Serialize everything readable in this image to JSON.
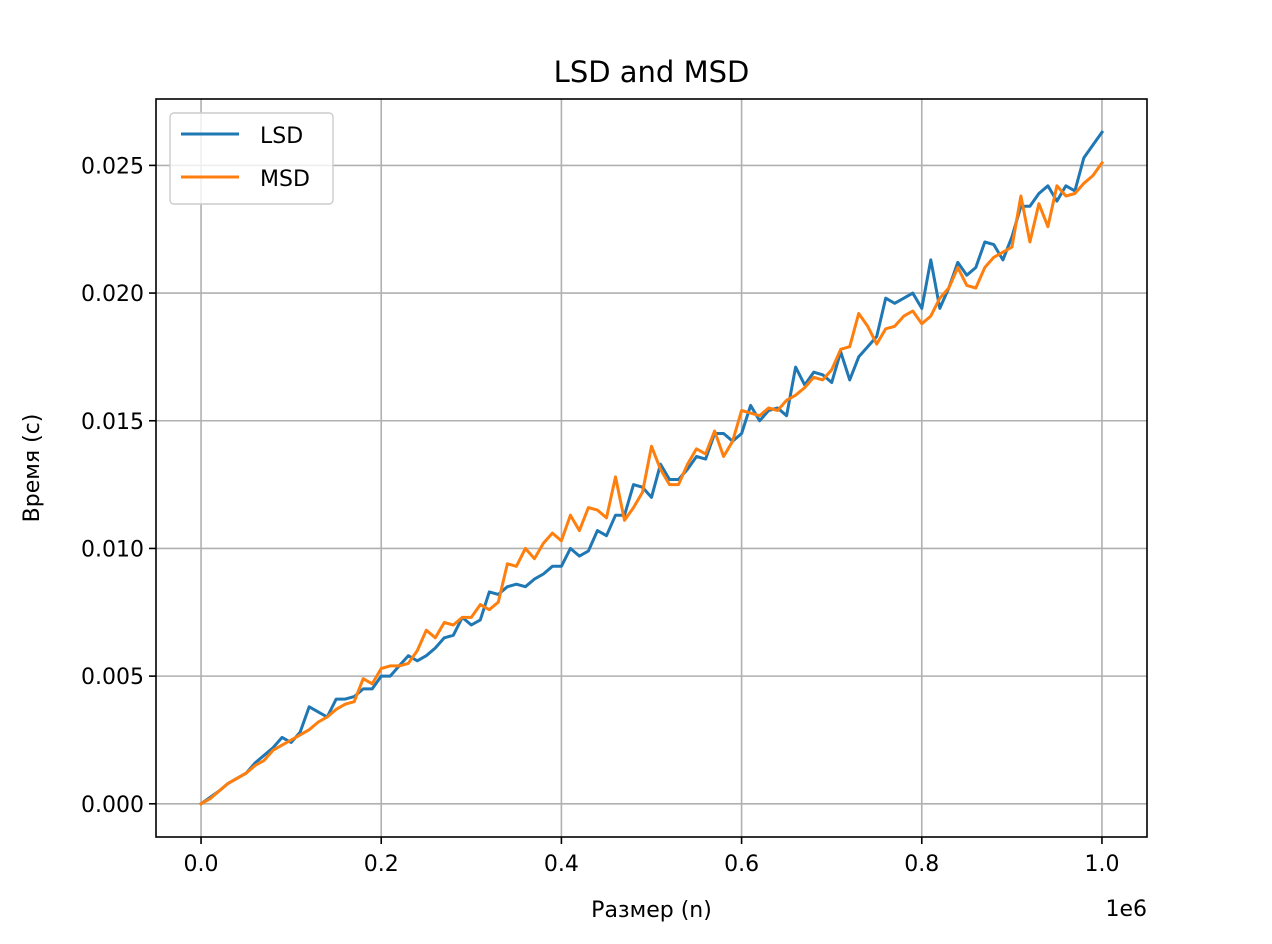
{
  "chart_data": {
    "type": "line",
    "title": "LSD and MSD",
    "xlabel": "Размер (n)",
    "ylabel": "Время (c)",
    "x_offset_label": "1e6",
    "xlim": [
      -50000,
      1050000
    ],
    "ylim": [
      -0.0013,
      0.0276
    ],
    "x_ticks": [
      0,
      200000,
      400000,
      600000,
      800000,
      1000000
    ],
    "x_tick_labels": [
      "0.0",
      "0.2",
      "0.4",
      "0.6",
      "0.8",
      "1.0"
    ],
    "y_ticks": [
      0.0,
      0.005,
      0.01,
      0.015,
      0.02,
      0.025
    ],
    "y_tick_labels": [
      "0.000",
      "0.005",
      "0.010",
      "0.015",
      "0.020",
      "0.025"
    ],
    "grid": true,
    "legend_position": "top-left",
    "x": [
      0,
      10000,
      20000,
      30000,
      40000,
      50000,
      60000,
      70000,
      80000,
      90000,
      100000,
      110000,
      120000,
      130000,
      140000,
      150000,
      160000,
      170000,
      180000,
      190000,
      200000,
      210000,
      220000,
      230000,
      240000,
      250000,
      260000,
      270000,
      280000,
      290000,
      300000,
      310000,
      320000,
      330000,
      340000,
      350000,
      360000,
      370000,
      380000,
      390000,
      400000,
      410000,
      420000,
      430000,
      440000,
      450000,
      460000,
      470000,
      480000,
      490000,
      500000,
      510000,
      520000,
      530000,
      540000,
      550000,
      560000,
      570000,
      580000,
      590000,
      600000,
      610000,
      620000,
      630000,
      640000,
      650000,
      660000,
      670000,
      680000,
      690000,
      700000,
      710000,
      720000,
      730000,
      740000,
      750000,
      760000,
      770000,
      780000,
      790000,
      800000,
      810000,
      820000,
      830000,
      840000,
      850000,
      860000,
      870000,
      880000,
      890000,
      900000,
      910000,
      920000,
      930000,
      940000,
      950000,
      960000,
      970000,
      980000,
      990000,
      1000000
    ],
    "series": [
      {
        "name": "LSD",
        "color": "#1f77b4",
        "values": [
          0.0,
          0.00025,
          0.0005,
          0.0008,
          0.001,
          0.0012,
          0.0016,
          0.0019,
          0.0022,
          0.0026,
          0.0024,
          0.0028,
          0.0038,
          0.0036,
          0.0034,
          0.0041,
          0.0041,
          0.0042,
          0.0045,
          0.0045,
          0.005,
          0.005,
          0.0054,
          0.0058,
          0.0056,
          0.0058,
          0.0061,
          0.0065,
          0.0066,
          0.0073,
          0.007,
          0.0072,
          0.0083,
          0.0082,
          0.0085,
          0.0086,
          0.0085,
          0.0088,
          0.009,
          0.0093,
          0.0093,
          0.01,
          0.0097,
          0.0099,
          0.0107,
          0.0105,
          0.0113,
          0.0113,
          0.0125,
          0.0124,
          0.012,
          0.0133,
          0.0127,
          0.0127,
          0.0131,
          0.0136,
          0.0135,
          0.0145,
          0.0145,
          0.0142,
          0.0145,
          0.0156,
          0.015,
          0.0154,
          0.0155,
          0.0152,
          0.0171,
          0.0164,
          0.0169,
          0.0168,
          0.0165,
          0.0177,
          0.0166,
          0.0175,
          0.0179,
          0.0183,
          0.0198,
          0.0196,
          0.0198,
          0.02,
          0.0194,
          0.0213,
          0.0194,
          0.0202,
          0.0212,
          0.0207,
          0.021,
          0.022,
          0.0219,
          0.0213,
          0.0222,
          0.0234,
          0.0234,
          0.0239,
          0.0242,
          0.0236,
          0.0242,
          0.024,
          0.0253,
          0.0258,
          0.0263
        ]
      },
      {
        "name": "MSD",
        "color": "#ff7f0e",
        "values": [
          0.0,
          0.0002,
          0.0005,
          0.0008,
          0.001,
          0.0012,
          0.0015,
          0.0017,
          0.0021,
          0.0023,
          0.0025,
          0.0027,
          0.0029,
          0.0032,
          0.0034,
          0.0037,
          0.0039,
          0.004,
          0.0049,
          0.0047,
          0.0053,
          0.0054,
          0.0054,
          0.0055,
          0.006,
          0.0068,
          0.0065,
          0.0071,
          0.007,
          0.0073,
          0.0073,
          0.0078,
          0.0076,
          0.0079,
          0.0094,
          0.0093,
          0.01,
          0.0096,
          0.0102,
          0.0106,
          0.0103,
          0.0113,
          0.0107,
          0.0116,
          0.0115,
          0.0112,
          0.0128,
          0.0111,
          0.0116,
          0.0122,
          0.014,
          0.0131,
          0.0125,
          0.0125,
          0.0133,
          0.0139,
          0.0137,
          0.0146,
          0.0136,
          0.0142,
          0.0154,
          0.0153,
          0.0152,
          0.0155,
          0.0154,
          0.0158,
          0.016,
          0.0163,
          0.0167,
          0.0166,
          0.017,
          0.0178,
          0.0179,
          0.0192,
          0.0187,
          0.018,
          0.0186,
          0.0187,
          0.0191,
          0.0193,
          0.0188,
          0.0191,
          0.0198,
          0.0202,
          0.021,
          0.0203,
          0.0202,
          0.021,
          0.0214,
          0.0216,
          0.0218,
          0.0238,
          0.022,
          0.0235,
          0.0226,
          0.0242,
          0.0238,
          0.0239,
          0.0243,
          0.0246,
          0.0251
        ]
      }
    ]
  }
}
